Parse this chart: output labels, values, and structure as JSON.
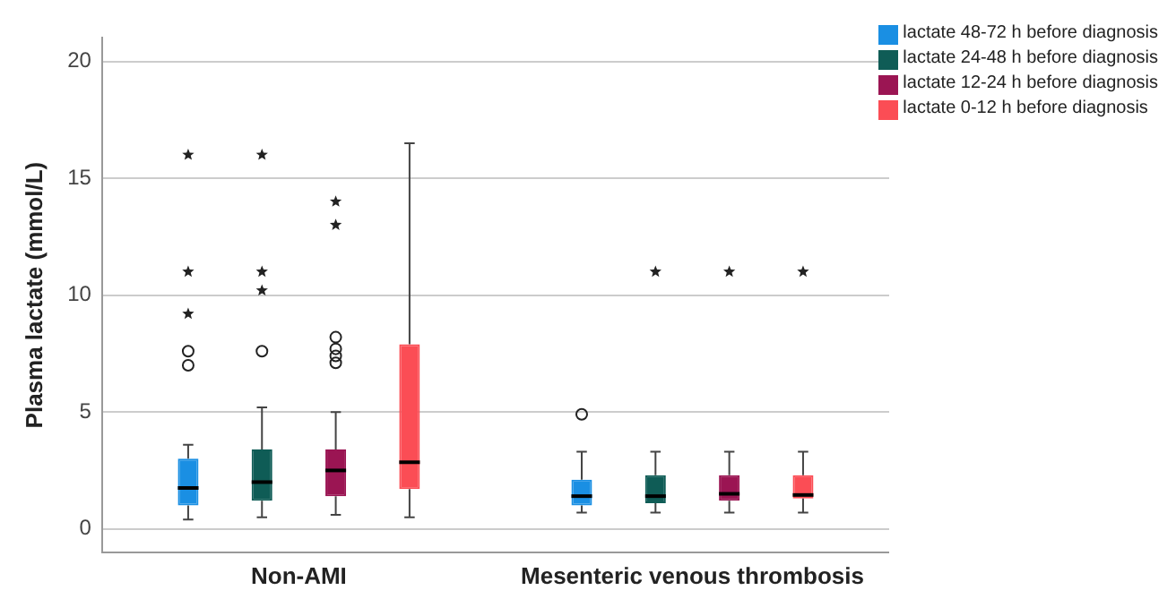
{
  "chart_data": {
    "type": "box",
    "ylabel": "Plasma lactate (mmol/L)",
    "categories": [
      "Non-AMI",
      "Mesenteric venous thrombosis"
    ],
    "ylim": [
      -1,
      21
    ],
    "yticks": [
      0,
      5,
      10,
      15,
      20
    ],
    "grid": "y",
    "legend": "top right",
    "series": [
      {
        "name": "lactate 48-72 h before diagnosis",
        "color": "#1a8fe3",
        "boxes": [
          {
            "low": 0.4,
            "q1": 1.0,
            "median": 1.75,
            "q3": 3.0,
            "high": 3.6,
            "outliers": [
              7.0,
              7.6,
              9.2,
              11,
              16
            ]
          },
          {
            "low": 0.7,
            "q1": 1.0,
            "median": 1.4,
            "q3": 2.1,
            "high": 3.3,
            "outliers": [
              4.9
            ]
          }
        ]
      },
      {
        "name": "lactate 24-48 h before diagnosis",
        "color": "#0f5c56",
        "boxes": [
          {
            "low": 0.5,
            "q1": 1.2,
            "median": 2.0,
            "q3": 3.4,
            "high": 5.2,
            "outliers": [
              7.6,
              10.2,
              11,
              16
            ]
          },
          {
            "low": 0.7,
            "q1": 1.1,
            "median": 1.4,
            "q3": 2.3,
            "high": 3.3,
            "outliers": [
              11
            ]
          }
        ]
      },
      {
        "name": "lactate 12-24 h before diagnosis",
        "color": "#9b1553",
        "boxes": [
          {
            "low": 0.6,
            "q1": 1.4,
            "median": 2.5,
            "q3": 3.4,
            "high": 5.0,
            "outliers": [
              7.1,
              7.4,
              7.7,
              8.2,
              13,
              14
            ]
          },
          {
            "low": 0.7,
            "q1": 1.2,
            "median": 1.5,
            "q3": 2.3,
            "high": 3.3,
            "outliers": [
              11
            ]
          }
        ]
      },
      {
        "name": "lactate 0-12 h before diagnosis",
        "color": "#fb4d55",
        "boxes": [
          {
            "low": 0.5,
            "q1": 1.7,
            "median": 2.85,
            "q3": 7.9,
            "high": 16.5
          },
          {
            "low": 0.7,
            "q1": 1.3,
            "median": 1.45,
            "q3": 2.3,
            "high": 3.3,
            "outliers": [
              11
            ]
          }
        ]
      }
    ]
  }
}
